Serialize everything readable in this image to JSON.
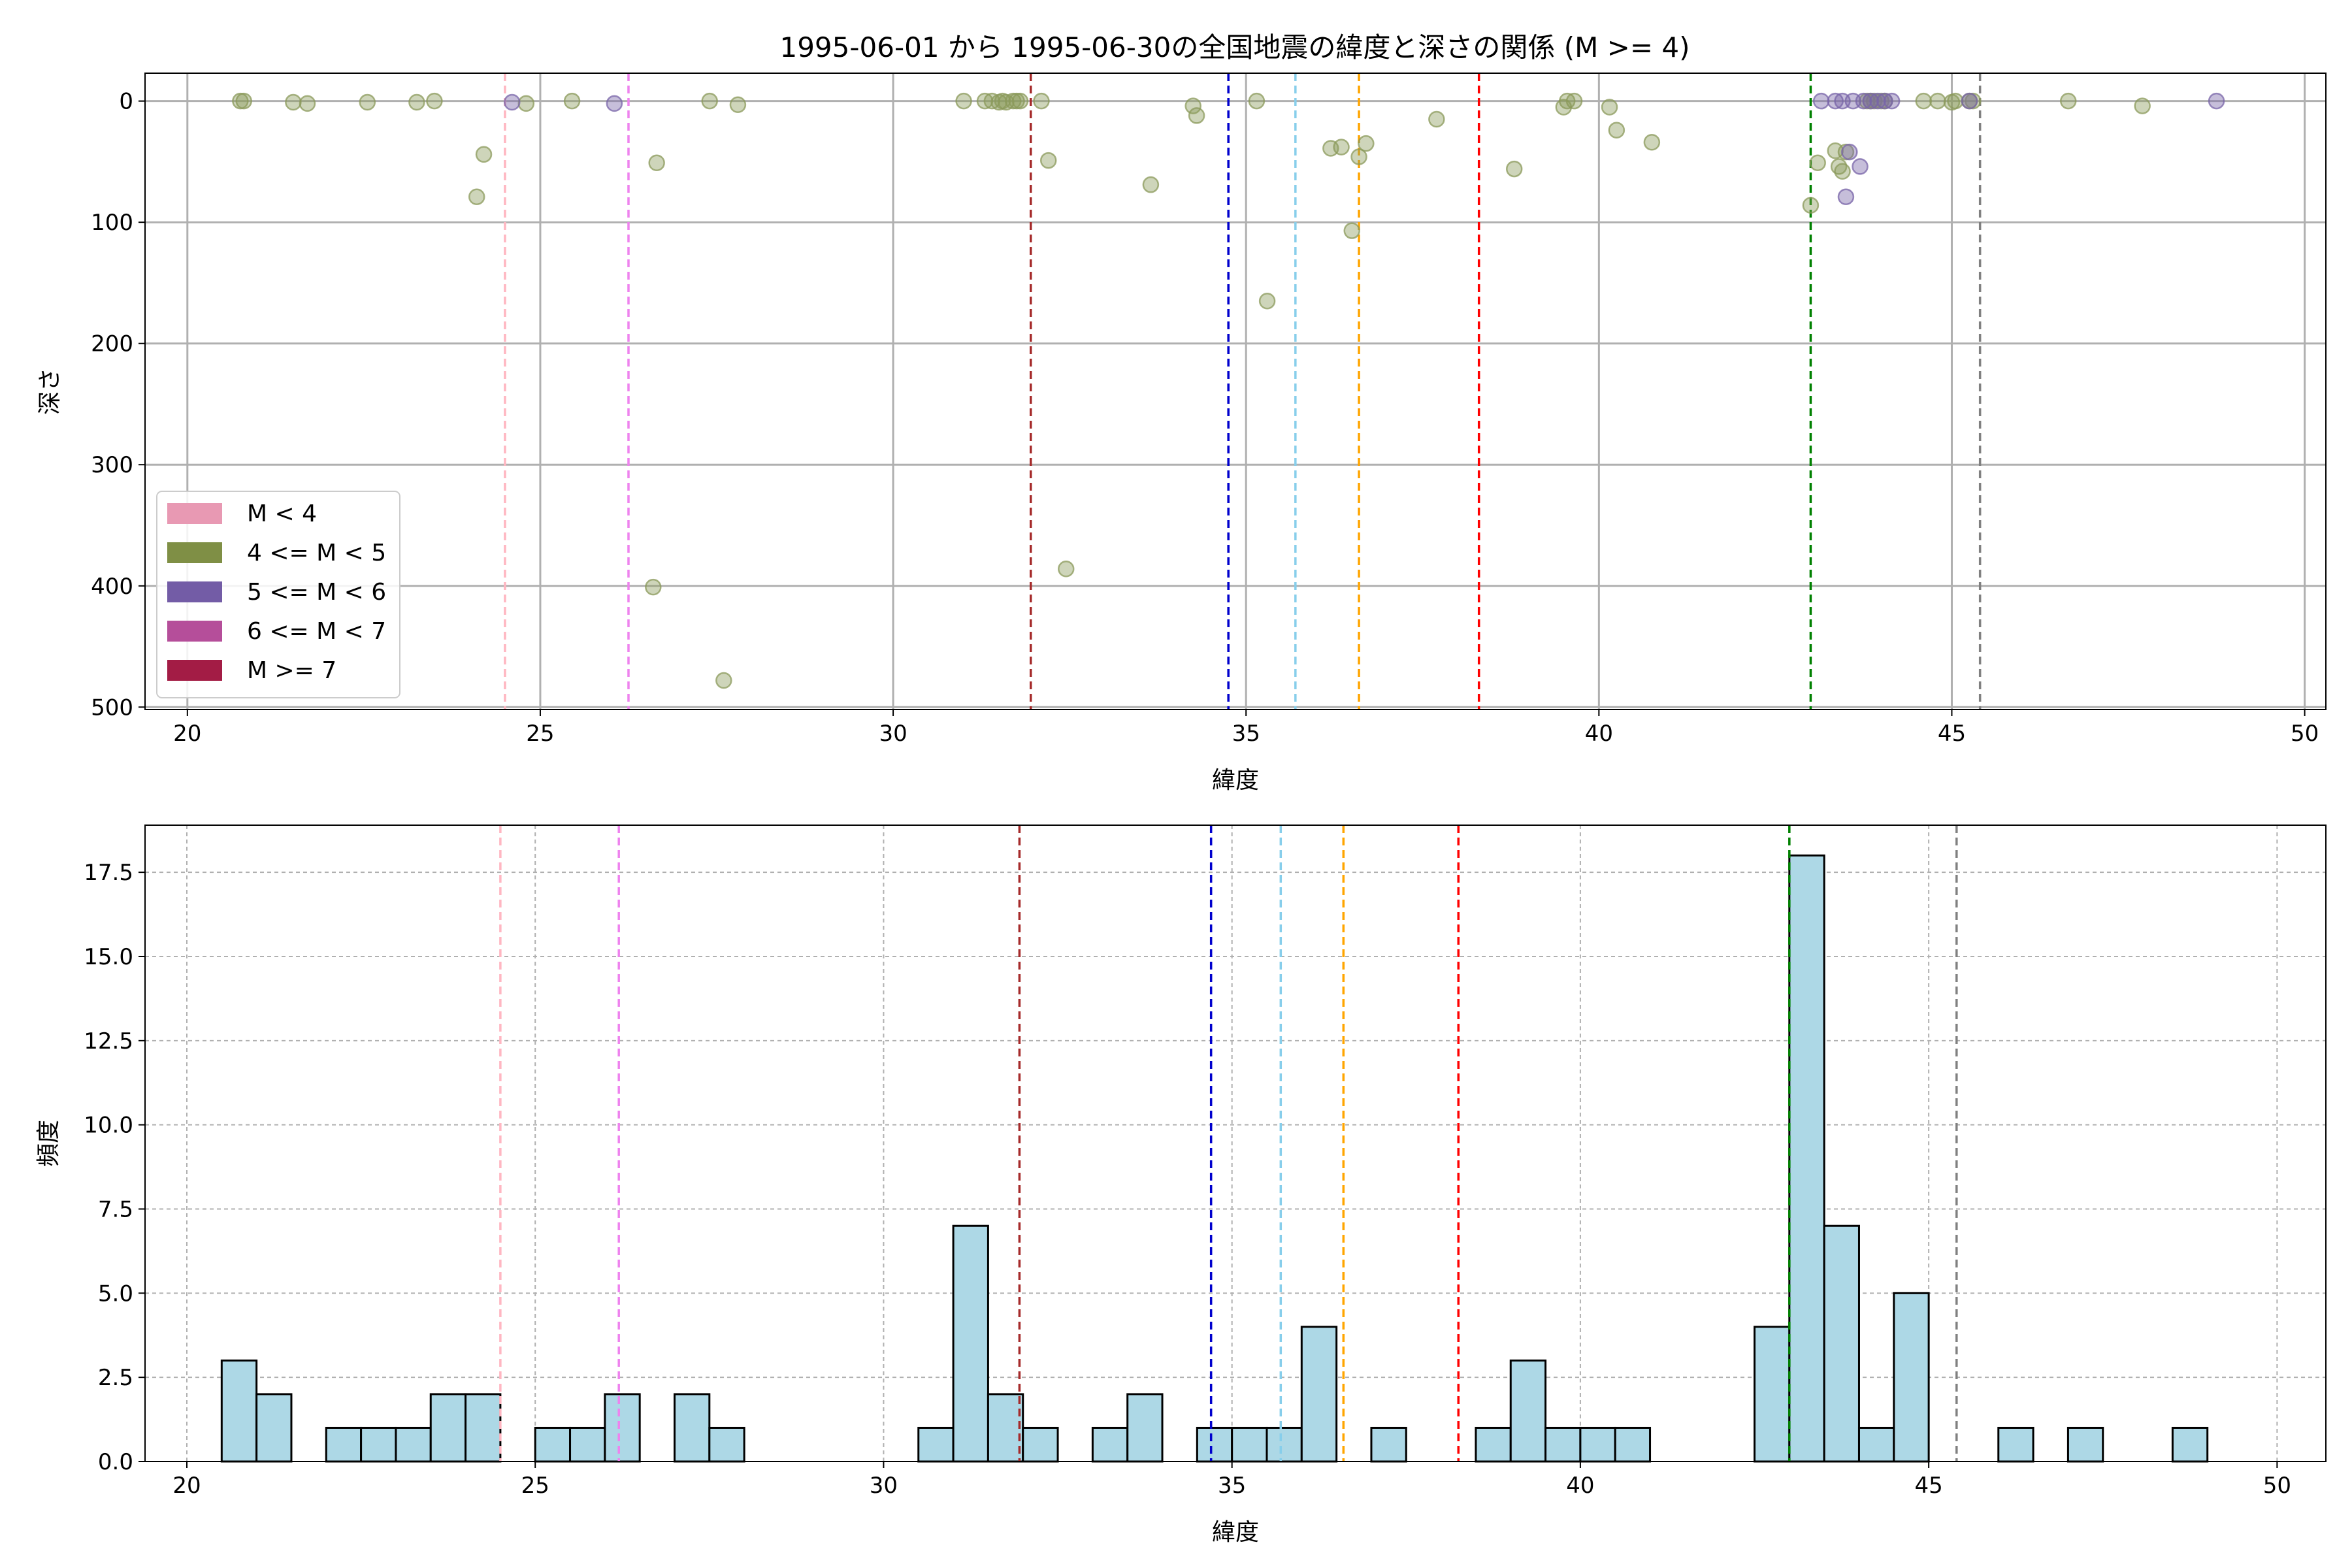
{
  "chart_data": [
    {
      "type": "scatter",
      "title": "1995-06-01 から 1995-06-30の全国地震の緯度と深さの関係 (M >= 4)",
      "xlabel": "緯度",
      "ylabel": "深さ",
      "xlim": [
        19.4,
        50.3
      ],
      "ylim": [
        502,
        -23
      ],
      "y_inverted": true,
      "xticks": [
        20,
        25,
        30,
        35,
        40,
        45,
        50
      ],
      "yticks": [
        0,
        100,
        200,
        300,
        400,
        500
      ],
      "grid": true,
      "legend_position": "lower-left",
      "legend": [
        {
          "label": "M < 4",
          "color": "#e899b3"
        },
        {
          "label": "4 <= M < 5",
          "color": "#7f8f45"
        },
        {
          "label": "5 <= M < 6",
          "color": "#735ca6"
        },
        {
          "label": "6 <= M < 7",
          "color": "#b54e9a"
        },
        {
          "label": "M >= 7",
          "color": "#a31c45"
        }
      ],
      "series": [
        {
          "name": "4 <= M < 5",
          "color": "#8b9a5b",
          "points": [
            [
              20.75,
              0
            ],
            [
              20.8,
              0
            ],
            [
              21.5,
              1
            ],
            [
              21.7,
              2
            ],
            [
              22.55,
              1
            ],
            [
              23.25,
              1
            ],
            [
              23.5,
              0
            ],
            [
              24.1,
              79
            ],
            [
              24.2,
              44
            ],
            [
              24.8,
              2
            ],
            [
              25.45,
              0
            ],
            [
              26.65,
              51
            ],
            [
              26.6,
              401
            ],
            [
              27.4,
              0
            ],
            [
              27.6,
              478
            ],
            [
              27.8,
              3
            ],
            [
              31.0,
              0
            ],
            [
              31.3,
              0
            ],
            [
              31.4,
              0
            ],
            [
              31.5,
              1
            ],
            [
              31.55,
              0
            ],
            [
              31.6,
              1
            ],
            [
              31.7,
              0
            ],
            [
              31.75,
              0
            ],
            [
              31.8,
              0
            ],
            [
              32.1,
              0
            ],
            [
              32.2,
              49
            ],
            [
              32.45,
              386
            ],
            [
              33.65,
              69
            ],
            [
              34.25,
              4
            ],
            [
              34.3,
              12
            ],
            [
              35.15,
              0
            ],
            [
              35.3,
              165
            ],
            [
              36.2,
              39
            ],
            [
              36.35,
              38
            ],
            [
              36.5,
              107
            ],
            [
              36.6,
              46
            ],
            [
              36.7,
              35
            ],
            [
              37.7,
              15
            ],
            [
              38.8,
              56
            ],
            [
              39.5,
              5
            ],
            [
              39.55,
              0
            ],
            [
              39.65,
              0
            ],
            [
              40.15,
              5
            ],
            [
              40.25,
              24
            ],
            [
              40.75,
              34
            ],
            [
              43.0,
              86
            ],
            [
              43.1,
              51
            ],
            [
              43.35,
              41
            ],
            [
              43.4,
              54
            ],
            [
              43.45,
              58
            ],
            [
              43.5,
              42
            ],
            [
              43.8,
              0
            ],
            [
              43.85,
              0
            ],
            [
              43.9,
              0
            ],
            [
              44.0,
              0
            ],
            [
              44.05,
              0
            ],
            [
              44.6,
              0
            ],
            [
              44.8,
              0
            ],
            [
              45.0,
              1
            ],
            [
              45.05,
              0
            ],
            [
              45.25,
              0
            ],
            [
              45.3,
              0
            ],
            [
              46.65,
              0
            ],
            [
              47.7,
              4
            ]
          ]
        },
        {
          "name": "5 <= M < 6",
          "color": "#7864a8",
          "points": [
            [
              24.6,
              1
            ],
            [
              26.05,
              2
            ],
            [
              43.15,
              0
            ],
            [
              43.35,
              0
            ],
            [
              43.45,
              0
            ],
            [
              43.5,
              79
            ],
            [
              43.55,
              42
            ],
            [
              43.6,
              0
            ],
            [
              43.7,
              54
            ],
            [
              43.75,
              0
            ],
            [
              43.85,
              0
            ],
            [
              43.95,
              0
            ],
            [
              44.05,
              0
            ],
            [
              44.15,
              0
            ],
            [
              45.25,
              0
            ],
            [
              48.75,
              0
            ]
          ]
        }
      ],
      "reference_lines": [
        {
          "x": 24.5,
          "color": "#ffb6c1"
        },
        {
          "x": 26.25,
          "color": "#ee82ee"
        },
        {
          "x": 31.95,
          "color": "#a52a2a"
        },
        {
          "x": 34.75,
          "color": "#0000cd"
        },
        {
          "x": 35.7,
          "color": "#87ceeb"
        },
        {
          "x": 36.6,
          "color": "#ffa500"
        },
        {
          "x": 38.3,
          "color": "#ff0000"
        },
        {
          "x": 43.0,
          "color": "#008000"
        },
        {
          "x": 45.4,
          "color": "#808080"
        }
      ]
    },
    {
      "type": "bar",
      "title": "",
      "xlabel": "緯度",
      "ylabel": "頻度",
      "xlim": [
        19.4,
        50.7
      ],
      "ylim": [
        0,
        18.9
      ],
      "xticks": [
        20,
        25,
        30,
        35,
        40,
        45,
        50
      ],
      "yticks": [
        0.0,
        2.5,
        5.0,
        7.5,
        10.0,
        12.5,
        15.0,
        17.5
      ],
      "ytick_labels": [
        "0.0",
        "2.5",
        "5.0",
        "7.5",
        "10.0",
        "12.5",
        "15.0",
        "17.5"
      ],
      "grid": true,
      "bar_color": "#add8e6",
      "bin_width": 0.5,
      "bins": [
        [
          20.75,
          3
        ],
        [
          21.25,
          2
        ],
        [
          22.25,
          1
        ],
        [
          22.75,
          1
        ],
        [
          23.25,
          1
        ],
        [
          23.75,
          2
        ],
        [
          24.25,
          2
        ],
        [
          25.25,
          1
        ],
        [
          25.75,
          1
        ],
        [
          26.25,
          2
        ],
        [
          27.25,
          2
        ],
        [
          27.75,
          1
        ],
        [
          30.75,
          1
        ],
        [
          31.25,
          7
        ],
        [
          31.75,
          2
        ],
        [
          32.25,
          1
        ],
        [
          33.25,
          1
        ],
        [
          33.75,
          2
        ],
        [
          34.75,
          1
        ],
        [
          35.25,
          1
        ],
        [
          35.75,
          1
        ],
        [
          36.25,
          4
        ],
        [
          37.25,
          1
        ],
        [
          38.75,
          1
        ],
        [
          39.25,
          3
        ],
        [
          39.75,
          1
        ],
        [
          40.25,
          1
        ],
        [
          40.75,
          1
        ],
        [
          42.75,
          4
        ],
        [
          43.25,
          18
        ],
        [
          43.75,
          7
        ],
        [
          44.25,
          1
        ],
        [
          44.75,
          5
        ],
        [
          46.25,
          1
        ],
        [
          47.25,
          1
        ],
        [
          48.75,
          1
        ]
      ],
      "reference_lines": [
        {
          "x": 24.5,
          "color": "#ffb6c1"
        },
        {
          "x": 26.2,
          "color": "#ee82ee"
        },
        {
          "x": 31.95,
          "color": "#a52a2a"
        },
        {
          "x": 34.7,
          "color": "#0000cd"
        },
        {
          "x": 35.7,
          "color": "#87ceeb"
        },
        {
          "x": 36.6,
          "color": "#ffa500"
        },
        {
          "x": 38.25,
          "color": "#ff0000"
        },
        {
          "x": 43.0,
          "color": "#008000"
        },
        {
          "x": 45.4,
          "color": "#808080"
        }
      ]
    }
  ]
}
